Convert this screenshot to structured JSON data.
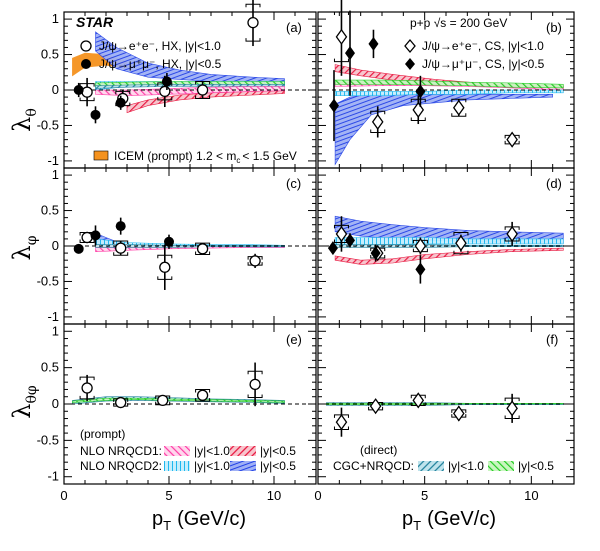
{
  "colors": {
    "nlo1_y10": "#ff3aa6",
    "nlo1_y05": "#e8103a",
    "nlo2_y10": "#1fb8ef",
    "nlo2_y05": "#2140e6",
    "cgc_y10": "#1e7f9a",
    "cgc_y05": "#22cc22",
    "icem": "#f5921e",
    "cs_high": "#ff3aa6",
    "cs_low": "#1fb8ef"
  },
  "text": {
    "star": "STAR",
    "energy": "p+p √s = 200 GeV",
    "hx_ee": "J/ψ→e⁺e⁻, HX, |y|<1.0",
    "hx_mm": "J/ψ→μ⁺μ⁻, HX, |y|<0.5",
    "cs_ee": "J/ψ→e⁺e⁻, CS, |y|<1.0",
    "cs_mm": "J/ψ→μ⁺μ⁻, CS, |y|<0.5",
    "icem": "ICEM (prompt) 1.2 < m",
    "icem_sub": "c",
    "icem_tail": "< 1.5 GeV",
    "prompt": "(prompt)",
    "nlo1": "NLO NRQCD1:",
    "nlo2": "NLO NRQCD2:",
    "direct": "(direct)",
    "cgc": "CGC+NRQCD:",
    "y10": "|y|<1.0",
    "y05": "|y|<0.5",
    "xlabel_main": "p",
    "xlabel_sub": "T",
    "xlabel_unit": "(GeV/c)",
    "yl_theta": "λ",
    "yl_theta_sub": "θ",
    "yl_phi": "λ",
    "yl_phi_sub": "φ",
    "yl_tp": "λ",
    "yl_tp_sub": "θφ"
  },
  "chart_data": {
    "type": "scatter",
    "xlim": [
      0,
      12
    ],
    "ylim": [
      -1.1,
      1.1
    ],
    "xticks": [
      "0",
      "5",
      "10"
    ],
    "yticks": [
      "-1",
      "-0.5",
      "0",
      "0.5",
      "1"
    ],
    "panels": [
      {
        "label": "(a)",
        "frame": "HX",
        "quantity": "lambda_theta",
        "ee": {
          "x": [
            1.1,
            2.8,
            4.8,
            6.6,
            9.0
          ],
          "y": [
            -0.03,
            -0.12,
            -0.02,
            0.0,
            0.95
          ],
          "err": [
            0.2,
            0.12,
            0.22,
            0.12,
            0.33
          ],
          "sys": [
            0.12,
            0.1,
            0.12,
            0.12,
            0.26
          ]
        },
        "mm": {
          "x": [
            0.7,
            1.5,
            2.7,
            4.9
          ],
          "y": [
            0.0,
            -0.35,
            -0.18,
            0.12
          ],
          "err": [
            0.1,
            0.12,
            0.1,
            0.12
          ]
        }
      },
      {
        "label": "(b)",
        "frame": "CS",
        "quantity": "lambda_theta",
        "ee": {
          "x": [
            1.1,
            2.8,
            4.7,
            6.6,
            9.1
          ],
          "y": [
            0.75,
            -0.45,
            -0.28,
            -0.25,
            -0.7
          ],
          "err": [
            0.55,
            0.22,
            0.2,
            0.12,
            0.08
          ],
          "sys": [
            0.35,
            0.15,
            0.15,
            0.12,
            0.06
          ]
        },
        "mm": {
          "x": [
            0.75,
            1.5,
            2.6,
            4.8
          ],
          "y": [
            -0.22,
            0.52,
            0.65,
            -0.02
          ],
          "err": [
            0.5,
            0.6,
            0.2,
            0.22
          ]
        }
      },
      {
        "label": "(c)",
        "frame": "HX",
        "quantity": "lambda_phi",
        "ee": {
          "x": [
            1.1,
            2.7,
            4.8,
            6.6,
            9.1
          ],
          "y": [
            0.12,
            -0.03,
            -0.3,
            -0.04,
            -0.21
          ],
          "err": [
            0.08,
            0.1,
            0.32,
            0.07,
            0.1
          ],
          "sys": [
            0.07,
            0.1,
            0.17,
            0.08,
            0.06
          ]
        },
        "mm": {
          "x": [
            0.7,
            1.5,
            2.7,
            5.0
          ],
          "y": [
            -0.04,
            0.15,
            0.28,
            0.06
          ],
          "err": [
            0.04,
            0.14,
            0.12,
            0.1
          ]
        }
      },
      {
        "label": "(d)",
        "frame": "CS",
        "quantity": "lambda_phi",
        "ee": {
          "x": [
            1.1,
            2.8,
            4.8,
            6.7,
            9.1
          ],
          "y": [
            0.17,
            -0.1,
            0.0,
            0.04,
            0.17
          ],
          "err": [
            0.25,
            0.08,
            0.12,
            0.12,
            0.17
          ],
          "sys": [
            0.12,
            0.07,
            0.08,
            0.15,
            0.1
          ]
        },
        "mm": {
          "x": [
            0.7,
            1.5,
            2.7,
            4.8
          ],
          "y": [
            -0.03,
            0.08,
            -0.1,
            -0.33
          ],
          "err": [
            0.08,
            0.1,
            0.12,
            0.2
          ]
        }
      },
      {
        "label": "(e)",
        "frame": "HX",
        "quantity": "lambda_theta_phi",
        "ee": {
          "x": [
            1.1,
            2.7,
            4.7,
            6.6,
            9.1
          ],
          "y": [
            0.22,
            0.02,
            0.05,
            0.12,
            0.27
          ],
          "err": [
            0.18,
            0.05,
            0.06,
            0.08,
            0.3
          ],
          "sys": [
            0.15,
            0.05,
            0.06,
            0.08,
            0.18
          ]
        },
        "mm": {
          "x": [],
          "y": [],
          "err": []
        }
      },
      {
        "label": "(f)",
        "frame": "CS",
        "quantity": "lambda_theta_phi",
        "ee": {
          "x": [
            1.1,
            2.7,
            4.7,
            6.6,
            9.1
          ],
          "y": [
            -0.25,
            -0.03,
            0.05,
            -0.13,
            -0.06
          ],
          "err": [
            0.2,
            0.06,
            0.08,
            0.1,
            0.2
          ],
          "sys": [
            0.1,
            0.05,
            0.07,
            0.05,
            0.14
          ]
        },
        "mm": {
          "x": [],
          "y": [],
          "err": []
        }
      }
    ],
    "bands": [
      {
        "panel": 0,
        "key": "icem",
        "x": [
          0.4,
          1.0,
          2.0,
          3.0
        ],
        "lo": [
          0.2,
          0.32,
          0.35,
          0.3
        ],
        "hi": [
          0.45,
          0.52,
          0.5,
          0.4
        ]
      },
      {
        "panel": 0,
        "key": "nlo2_y05",
        "x": [
          1.5,
          2.5,
          4.0,
          5.5,
          7.0,
          9.0,
          10.5
        ],
        "lo": [
          0.55,
          0.3,
          0.18,
          0.15,
          0.12,
          0.1,
          0.08
        ],
        "hi": [
          0.82,
          0.6,
          0.38,
          0.28,
          0.22,
          0.18,
          0.16
        ]
      },
      {
        "panel": 0,
        "key": "nlo2_y10",
        "x": [
          1.5,
          3,
          5,
          7,
          9,
          10.5
        ],
        "lo": [
          0.0,
          0.05,
          0.06,
          0.06,
          0.06,
          0.06
        ],
        "hi": [
          0.12,
          0.12,
          0.12,
          0.12,
          0.12,
          0.12
        ]
      },
      {
        "panel": 0,
        "key": "cgc_y05",
        "x": [
          1.5,
          3,
          5,
          7,
          9,
          10.5
        ],
        "lo": [
          0.04,
          0.06,
          0.07,
          0.07,
          0.07,
          0.07
        ],
        "hi": [
          0.1,
          0.11,
          0.12,
          0.12,
          0.12,
          0.12
        ]
      },
      {
        "panel": 0,
        "key": "cgc_y10",
        "x": [
          1.5,
          3,
          5,
          7,
          9,
          10.5
        ],
        "lo": [
          0.02,
          0.04,
          0.05,
          0.05,
          0.05,
          0.05
        ],
        "hi": [
          0.06,
          0.07,
          0.08,
          0.08,
          0.08,
          0.08
        ]
      },
      {
        "panel": 0,
        "key": "nlo1_y05",
        "x": [
          3.0,
          4.0,
          5.5,
          7.0,
          9.0,
          10.5
        ],
        "lo": [
          -0.32,
          -0.22,
          -0.14,
          -0.1,
          -0.07,
          -0.05
        ],
        "hi": [
          -0.22,
          -0.14,
          -0.07,
          -0.04,
          -0.02,
          -0.01
        ]
      },
      {
        "panel": 0,
        "key": "nlo1_y10",
        "x": [
          1.5,
          3,
          5,
          7,
          9,
          10.5
        ],
        "lo": [
          -0.06,
          -0.08,
          -0.06,
          -0.04,
          -0.02,
          -0.01
        ],
        "hi": [
          0.0,
          0.0,
          0.02,
          0.04,
          0.05,
          0.05
        ]
      },
      {
        "panel": 1,
        "key": "nlo2_y05",
        "x": [
          0.8,
          1.5,
          2.5,
          4,
          5.5,
          7,
          9,
          11
        ],
        "lo": [
          -1.05,
          -0.7,
          -0.35,
          -0.22,
          -0.18,
          -0.14,
          -0.12,
          -0.1
        ],
        "hi": [
          -0.2,
          -0.1,
          -0.06,
          -0.06,
          -0.06,
          -0.06,
          -0.06,
          -0.06
        ]
      },
      {
        "panel": 1,
        "key": "nlo1_y05",
        "x": [
          0.8,
          2,
          3.5,
          5.5,
          7.5,
          9.5,
          11.5
        ],
        "lo": [
          0.26,
          0.2,
          0.14,
          0.08,
          0.05,
          0.03,
          0.02
        ],
        "hi": [
          0.36,
          0.28,
          0.22,
          0.15,
          0.1,
          0.07,
          0.05
        ]
      },
      {
        "panel": 1,
        "key": "nlo1_y10",
        "x": [
          0.8,
          3,
          5,
          7,
          9,
          11.5
        ],
        "lo": [
          0.05,
          0.06,
          0.06,
          0.05,
          0.03,
          0.0
        ],
        "hi": [
          0.1,
          0.12,
          0.12,
          0.1,
          0.08,
          0.06
        ]
      },
      {
        "panel": 1,
        "key": "cgc_y05",
        "x": [
          0.8,
          3,
          5,
          7,
          9,
          11.5
        ],
        "lo": [
          0.08,
          0.08,
          0.07,
          0.06,
          0.04,
          0.03
        ],
        "hi": [
          0.14,
          0.14,
          0.13,
          0.11,
          0.1,
          0.08
        ]
      },
      {
        "panel": 1,
        "key": "nlo2_y10",
        "x": [
          0.8,
          3,
          5,
          7,
          9,
          11.5
        ],
        "lo": [
          -0.08,
          -0.08,
          -0.06,
          -0.06,
          -0.04,
          -0.04
        ],
        "hi": [
          -0.02,
          -0.02,
          -0.02,
          0.0,
          0.0,
          0.0
        ]
      },
      {
        "panel": 2,
        "key": "nlo2_y05",
        "x": [
          1.5,
          2,
          2.5,
          3
        ],
        "lo": [
          0.05,
          0.0,
          -0.03,
          -0.05
        ],
        "hi": [
          0.18,
          0.12,
          0.06,
          0.0
        ]
      },
      {
        "panel": 2,
        "key": "nlo2_y10",
        "x": [
          1.5,
          3,
          5,
          7,
          9,
          10.5
        ],
        "lo": [
          0.02,
          0.0,
          -0.01,
          -0.02,
          -0.02,
          -0.02
        ],
        "hi": [
          0.1,
          0.05,
          0.03,
          0.02,
          0.02,
          0.01
        ]
      },
      {
        "panel": 2,
        "key": "nlo1_y10",
        "x": [
          1.5,
          3,
          5,
          7,
          9,
          10.5
        ],
        "lo": [
          -0.08,
          -0.06,
          -0.04,
          -0.03,
          -0.02,
          -0.02
        ],
        "hi": [
          -0.02,
          -0.02,
          -0.01,
          0.0,
          0.0,
          0.0
        ]
      },
      {
        "panel": 2,
        "key": "cgc_y10",
        "x": [
          1.5,
          3,
          5,
          7,
          9,
          10.5
        ],
        "lo": [
          -0.02,
          -0.02,
          -0.02,
          -0.01,
          -0.01,
          -0.01
        ],
        "hi": [
          0.02,
          0.02,
          0.01,
          0.01,
          0.01,
          0.01
        ]
      },
      {
        "panel": 3,
        "key": "nlo2_y05",
        "x": [
          0.8,
          2,
          3.5,
          5,
          7,
          9,
          11.5
        ],
        "lo": [
          0.2,
          0.14,
          0.1,
          0.08,
          0.06,
          0.05,
          0.04
        ],
        "hi": [
          0.42,
          0.35,
          0.3,
          0.26,
          0.22,
          0.2,
          0.18
        ]
      },
      {
        "panel": 3,
        "key": "nlo2_y10",
        "x": [
          0.8,
          3,
          5,
          7,
          9,
          11.5
        ],
        "lo": [
          0.0,
          0.02,
          0.03,
          0.03,
          0.03,
          0.03
        ],
        "hi": [
          0.12,
          0.12,
          0.12,
          0.1,
          0.1,
          0.1
        ]
      },
      {
        "panel": 3,
        "key": "nlo1_y05",
        "x": [
          0.8,
          2,
          3.5,
          5,
          7,
          9,
          11.5
        ],
        "lo": [
          -0.2,
          -0.26,
          -0.24,
          -0.18,
          -0.12,
          -0.08,
          -0.06
        ],
        "hi": [
          -0.14,
          -0.2,
          -0.18,
          -0.12,
          -0.08,
          -0.05,
          -0.03
        ]
      },
      {
        "panel": 3,
        "key": "cgc_y10",
        "x": [
          0.8,
          3,
          5,
          7,
          9,
          11.5
        ],
        "lo": [
          -0.02,
          -0.02,
          -0.02,
          -0.01,
          -0.01,
          -0.01
        ],
        "hi": [
          0.02,
          0.02,
          0.02,
          0.01,
          0.01,
          0.01
        ]
      },
      {
        "panel": 4,
        "key": "cgc_y10",
        "x": [
          0.4,
          2,
          3.5,
          5,
          7,
          9,
          10.5
        ],
        "lo": [
          0.0,
          0.04,
          0.05,
          0.04,
          0.03,
          0.02,
          0.01
        ],
        "hi": [
          0.05,
          0.1,
          0.1,
          0.09,
          0.07,
          0.06,
          0.05
        ]
      },
      {
        "panel": 4,
        "key": "cgc_y05",
        "x": [
          0.4,
          2,
          3.5,
          5,
          7,
          9,
          10.5
        ],
        "lo": [
          0.02,
          0.05,
          0.06,
          0.05,
          0.04,
          0.03,
          0.02
        ],
        "hi": [
          0.04,
          0.08,
          0.08,
          0.07,
          0.06,
          0.05,
          0.04
        ]
      },
      {
        "panel": 5,
        "key": "cgc_y10",
        "x": [
          0.4,
          3,
          5,
          7,
          9,
          11.5
        ],
        "lo": [
          -0.02,
          -0.02,
          -0.02,
          -0.01,
          -0.01,
          -0.01
        ],
        "hi": [
          0.02,
          0.02,
          0.02,
          0.01,
          0.01,
          0.01
        ]
      },
      {
        "panel": 5,
        "key": "cgc_y05",
        "x": [
          0.4,
          3,
          5,
          7,
          9,
          11.5
        ],
        "lo": [
          -0.01,
          -0.01,
          -0.01,
          0.0,
          0.0,
          0.0
        ],
        "hi": [
          0.01,
          0.01,
          0.01,
          0.01,
          0.01,
          0.01
        ]
      }
    ]
  }
}
